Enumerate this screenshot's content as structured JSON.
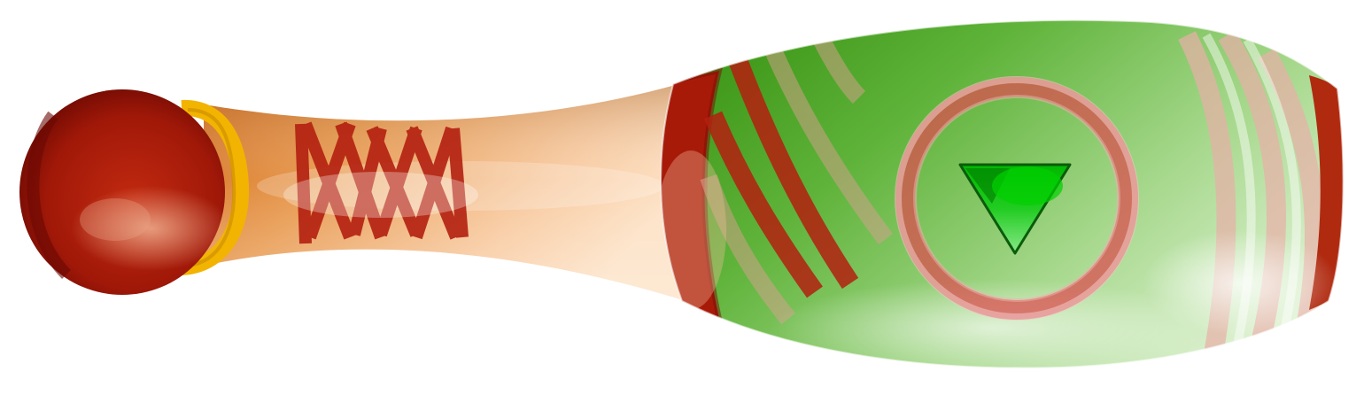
{
  "illustration": {
    "subject": "bowling-pin",
    "icon": "play-down-triangle-icon"
  },
  "colors": {
    "background": "#ffffff",
    "cap_dark": "#7a0d05",
    "cap_main": "#a91a08",
    "collar_gold": "#f2b400",
    "neck_orange_dark": "#d77a2a",
    "neck_peach_light": "#fde2c4",
    "band_red": "#b32010",
    "body_green_dark": "#3f9a1a",
    "body_green_light": "#cfeabd",
    "ring_red": "#d64a4a",
    "triangle_green": "#00c800",
    "triangle_dark": "#0b5c0b"
  }
}
